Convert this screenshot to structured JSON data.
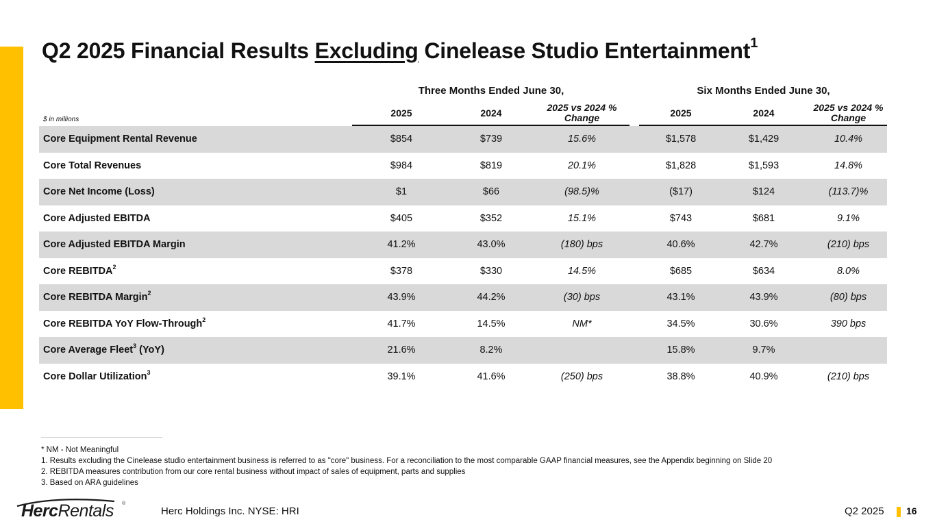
{
  "slide": {
    "title_pre": "Q2 2025 Financial Results ",
    "title_underlined": "Excluding",
    "title_post": " Cinelease Studio Entertainment",
    "title_sup": "1",
    "accent_color": "#FFC000",
    "row_shade_color": "#D9D9D9"
  },
  "table": {
    "units_note": "$ in millions",
    "group_headers": [
      "Three Months Ended June 30,",
      "Six Months Ended June 30,"
    ],
    "columns": [
      "2025",
      "2024",
      "2025 vs 2024 % Change",
      "2025",
      "2024",
      "2025 vs 2024 % Change"
    ],
    "rows": [
      {
        "label": "Core Equipment Rental Revenue",
        "sup": "",
        "values": [
          "$854",
          "$739",
          "15.6%",
          "$1,578",
          "$1,429",
          "10.4%"
        ]
      },
      {
        "label": "Core Total Revenues",
        "sup": "",
        "values": [
          "$984",
          "$819",
          "20.1%",
          "$1,828",
          "$1,593",
          "14.8%"
        ]
      },
      {
        "label": "Core Net Income (Loss)",
        "sup": "",
        "values": [
          "$1",
          "$66",
          "(98.5)%",
          "($17)",
          "$124",
          "(113.7)%"
        ]
      },
      {
        "label": "Core Adjusted EBITDA",
        "sup": "",
        "values": [
          "$405",
          "$352",
          "15.1%",
          "$743",
          "$681",
          "9.1%"
        ]
      },
      {
        "label": "Core Adjusted EBITDA Margin",
        "sup": "",
        "values": [
          "41.2%",
          "43.0%",
          "(180) bps",
          "40.6%",
          "42.7%",
          "(210) bps"
        ]
      },
      {
        "label": "Core REBITDA",
        "sup": "2",
        "values": [
          "$378",
          "$330",
          "14.5%",
          "$685",
          "$634",
          "8.0%"
        ]
      },
      {
        "label": "Core REBITDA Margin",
        "sup": "2",
        "values": [
          "43.9%",
          "44.2%",
          "(30) bps",
          "43.1%",
          "43.9%",
          "(80) bps"
        ]
      },
      {
        "label": "Core REBITDA YoY Flow-Through",
        "sup": "2",
        "values": [
          "41.7%",
          "14.5%",
          "NM*",
          "34.5%",
          "30.6%",
          "390 bps"
        ]
      },
      {
        "label": "Core Average Fleet",
        "sup": "3",
        "label_suffix": " (YoY)",
        "values": [
          "21.6%",
          "8.2%",
          "",
          "15.8%",
          "9.7%",
          ""
        ]
      },
      {
        "label": "Core Dollar Utilization",
        "sup": "3",
        "values": [
          "39.1%",
          "41.6%",
          "(250) bps",
          "38.8%",
          "40.9%",
          "(210) bps"
        ]
      }
    ]
  },
  "footnotes": [
    "* NM - Not Meaningful",
    "1. Results excluding the Cinelease studio entertainment business is referred to as \"core\" business. For a reconciliation to the most comparable GAAP financial measures, see the Appendix beginning on Slide 20",
    "2. REBITDA measures contribution from our core rental business without impact of sales of equipment, parts and supplies",
    "3. Based on ARA guidelines"
  ],
  "footer": {
    "logo_bold": "Herc",
    "logo_light": "Rentals",
    "logo_reg": "®",
    "company": "Herc Holdings Inc.  NYSE: HRI",
    "quarter": "Q2 2025",
    "page_number": "16"
  }
}
